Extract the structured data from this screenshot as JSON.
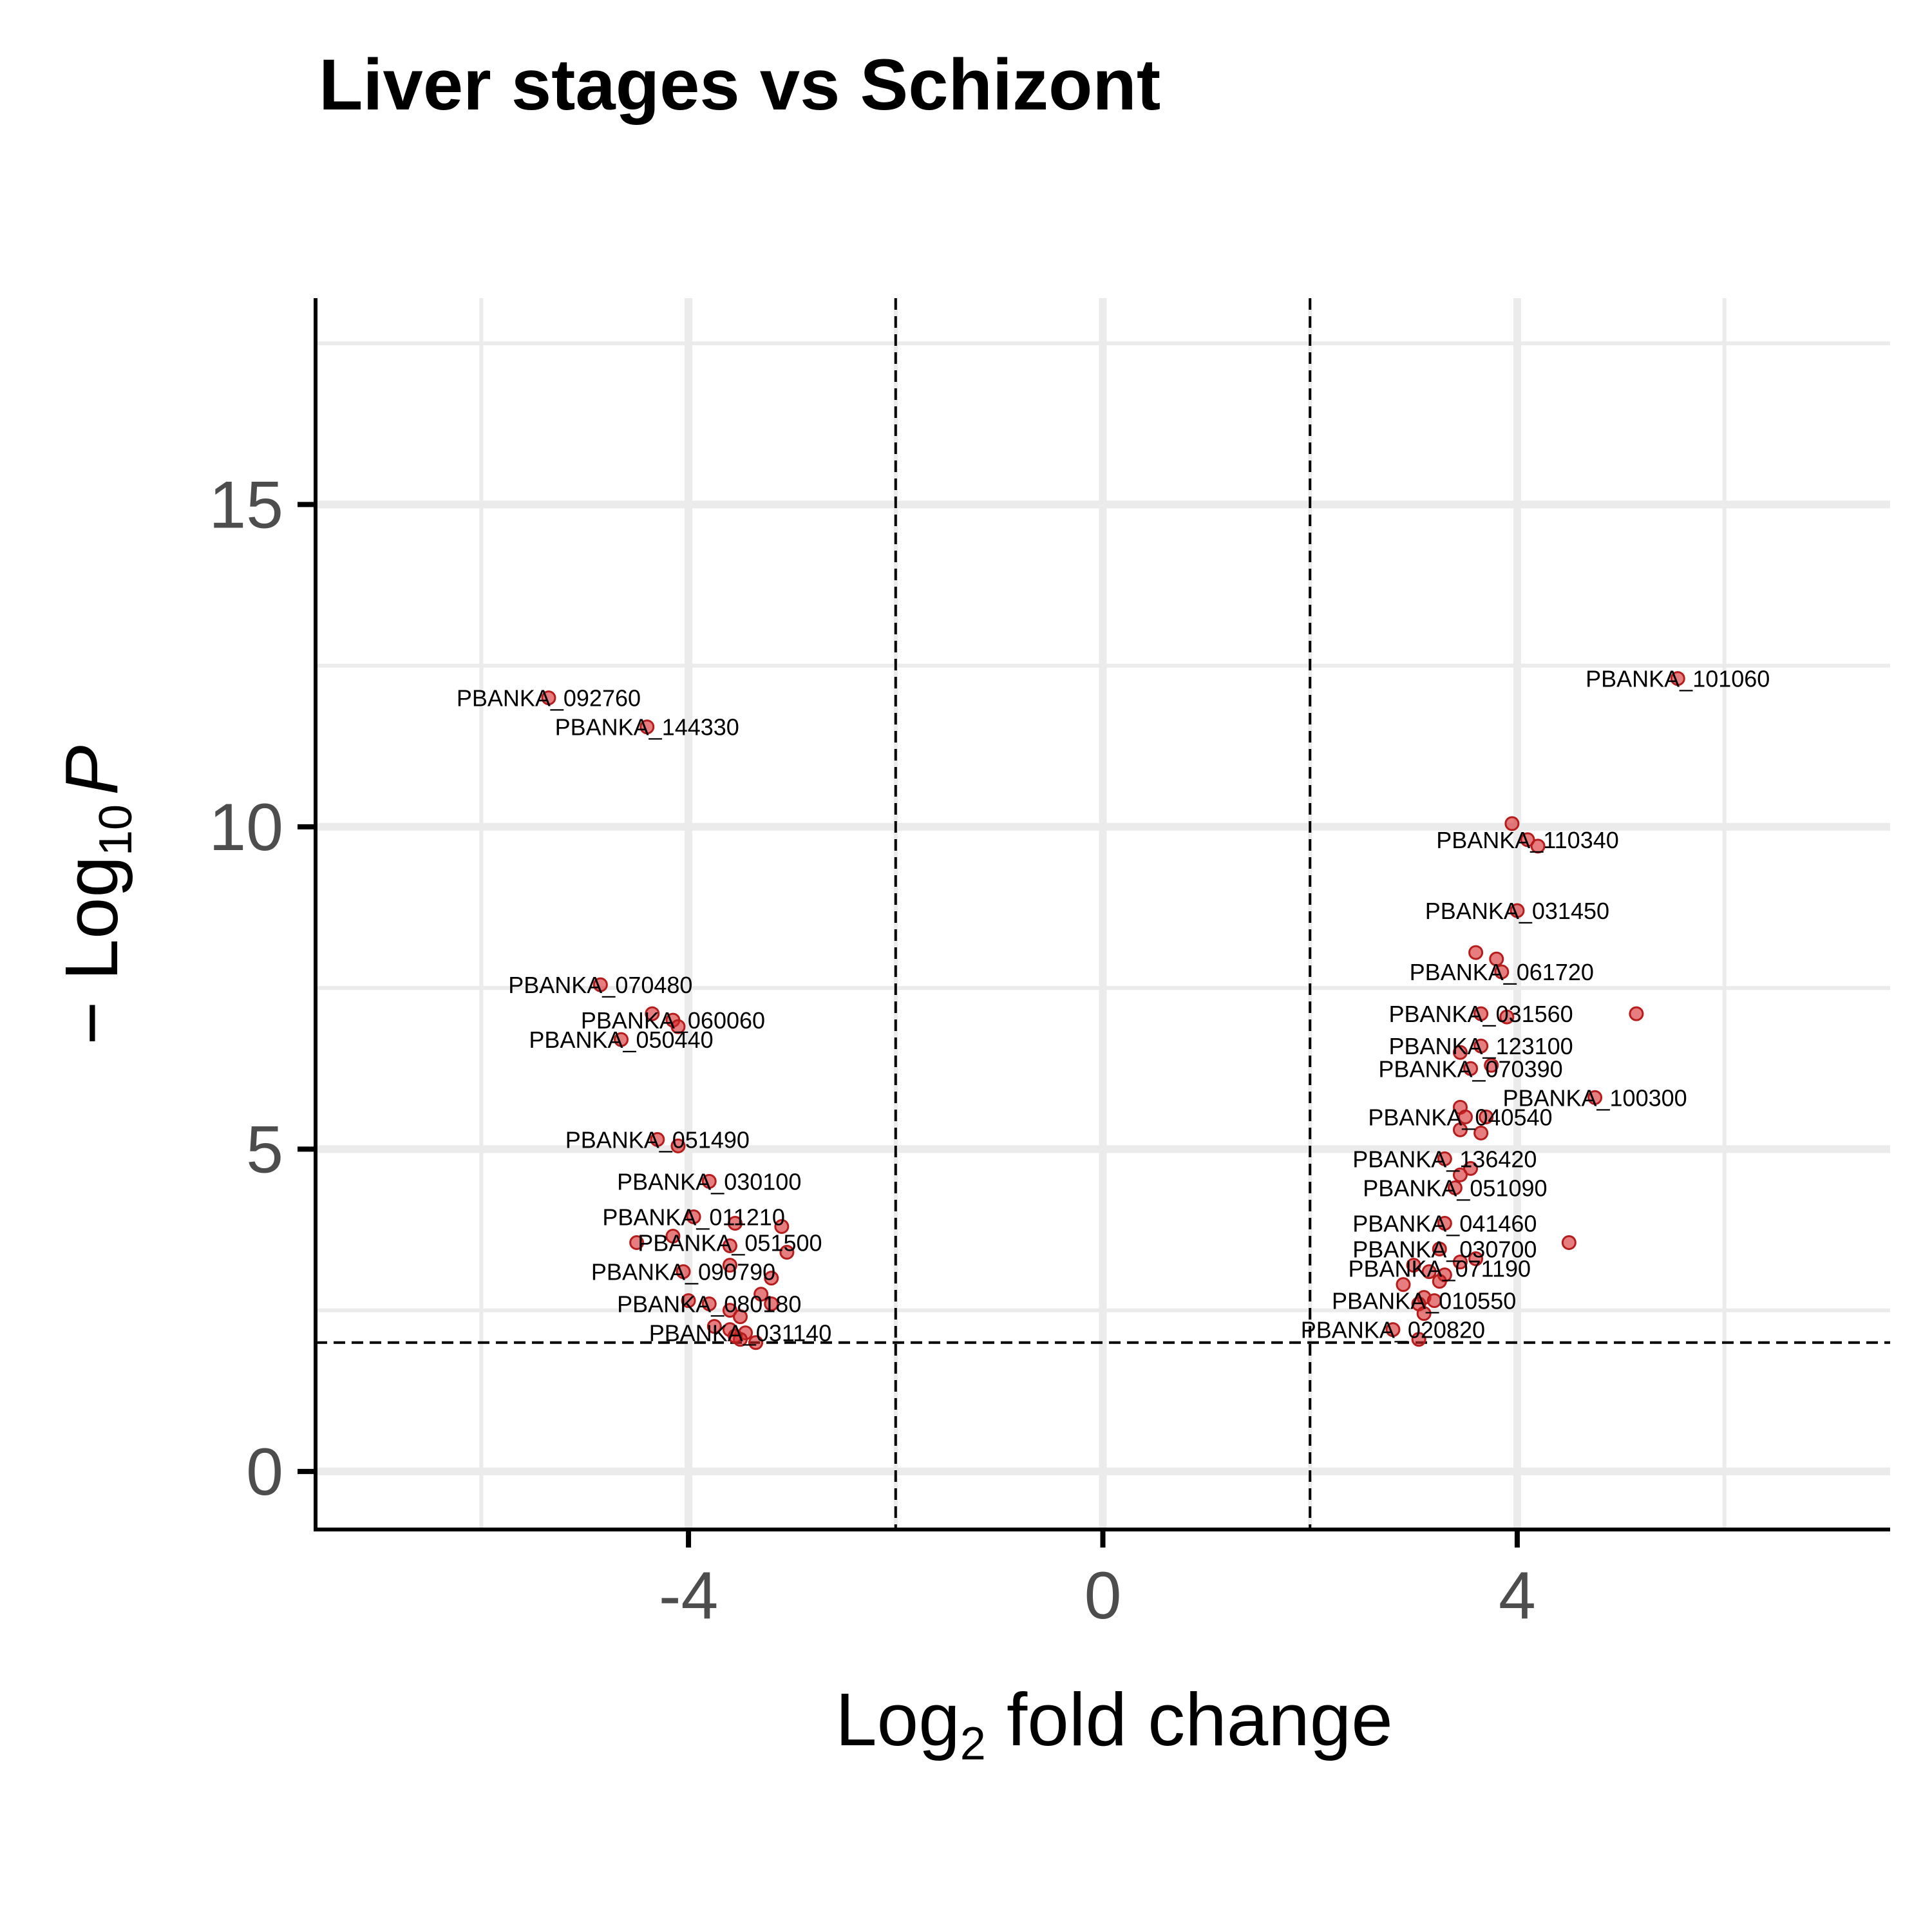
{
  "chart_data": {
    "type": "scatter",
    "title": "Liver stages vs Schizont",
    "xlabel": "Log2 fold change",
    "xlabel_parts": {
      "base": "Log",
      "sub": "2",
      "rest": " fold change"
    },
    "ylabel": "-Log10 P",
    "ylabel_parts": {
      "prefix": "− Log",
      "sub": "10",
      "italic": "P"
    },
    "xlim": [
      -7.6,
      7.6
    ],
    "ylim": [
      -0.9,
      18.2
    ],
    "xticks": [
      -4,
      0,
      4
    ],
    "xtick_labels": [
      "-4",
      "0",
      "4"
    ],
    "yticks": [
      0,
      5,
      10,
      15
    ],
    "ytick_labels": [
      "0",
      "5",
      "10",
      "15"
    ],
    "x_minor_gridlines": [
      -6,
      -2,
      2,
      6
    ],
    "y_minor_gridlines": [
      2.5,
      7.5,
      12.5,
      17.5
    ],
    "fc_cutoff": [
      -2,
      2
    ],
    "p_cutoff": 2,
    "grid": true,
    "legend": "none",
    "point_color": "#d62728",
    "points": [
      {
        "x": -5.35,
        "y": 12.0
      },
      {
        "x": -4.4,
        "y": 11.55
      },
      {
        "x": -4.85,
        "y": 7.55
      },
      {
        "x": -4.35,
        "y": 7.1
      },
      {
        "x": -4.15,
        "y": 7.0
      },
      {
        "x": -4.1,
        "y": 6.9
      },
      {
        "x": -4.65,
        "y": 6.7
      },
      {
        "x": -4.3,
        "y": 5.15
      },
      {
        "x": -4.1,
        "y": 5.05
      },
      {
        "x": -3.8,
        "y": 4.5
      },
      {
        "x": -3.95,
        "y": 3.95
      },
      {
        "x": -3.55,
        "y": 3.85
      },
      {
        "x": -3.1,
        "y": 3.8
      },
      {
        "x": -4.5,
        "y": 3.55
      },
      {
        "x": -4.15,
        "y": 3.65
      },
      {
        "x": -3.6,
        "y": 3.5
      },
      {
        "x": -3.05,
        "y": 3.4
      },
      {
        "x": -3.6,
        "y": 3.2
      },
      {
        "x": -4.05,
        "y": 3.1
      },
      {
        "x": -3.2,
        "y": 3.0
      },
      {
        "x": -3.3,
        "y": 2.75
      },
      {
        "x": -4.0,
        "y": 2.65
      },
      {
        "x": -3.8,
        "y": 2.6
      },
      {
        "x": -3.2,
        "y": 2.6
      },
      {
        "x": -3.6,
        "y": 2.5
      },
      {
        "x": -3.5,
        "y": 2.4
      },
      {
        "x": -3.75,
        "y": 2.25
      },
      {
        "x": -3.6,
        "y": 2.2
      },
      {
        "x": -3.45,
        "y": 2.15
      },
      {
        "x": -3.5,
        "y": 2.05
      },
      {
        "x": -3.35,
        "y": 2.0
      },
      {
        "x": -3.55,
        "y": 2.1
      },
      {
        "x": 5.55,
        "y": 12.3
      },
      {
        "x": 3.95,
        "y": 10.05
      },
      {
        "x": 4.1,
        "y": 9.8
      },
      {
        "x": 4.2,
        "y": 9.7
      },
      {
        "x": 4.0,
        "y": 8.7
      },
      {
        "x": 3.6,
        "y": 8.05
      },
      {
        "x": 3.8,
        "y": 7.95
      },
      {
        "x": 3.85,
        "y": 7.75
      },
      {
        "x": 5.15,
        "y": 7.1
      },
      {
        "x": 3.9,
        "y": 7.05
      },
      {
        "x": 3.65,
        "y": 7.1
      },
      {
        "x": 3.65,
        "y": 6.6
      },
      {
        "x": 3.45,
        "y": 6.5
      },
      {
        "x": 3.55,
        "y": 6.25
      },
      {
        "x": 3.75,
        "y": 6.3
      },
      {
        "x": 4.75,
        "y": 5.8
      },
      {
        "x": 3.45,
        "y": 5.65
      },
      {
        "x": 3.7,
        "y": 5.5
      },
      {
        "x": 3.5,
        "y": 5.5
      },
      {
        "x": 3.45,
        "y": 5.3
      },
      {
        "x": 3.65,
        "y": 5.25
      },
      {
        "x": 3.3,
        "y": 4.85
      },
      {
        "x": 3.55,
        "y": 4.7
      },
      {
        "x": 3.45,
        "y": 4.6
      },
      {
        "x": 3.4,
        "y": 4.4
      },
      {
        "x": 3.3,
        "y": 3.85
      },
      {
        "x": 4.5,
        "y": 3.55
      },
      {
        "x": 3.25,
        "y": 3.45
      },
      {
        "x": 3.6,
        "y": 3.3
      },
      {
        "x": 3.45,
        "y": 3.25
      },
      {
        "x": 3.0,
        "y": 3.2
      },
      {
        "x": 3.15,
        "y": 3.1
      },
      {
        "x": 3.3,
        "y": 3.05
      },
      {
        "x": 3.25,
        "y": 2.95
      },
      {
        "x": 2.9,
        "y": 2.9
      },
      {
        "x": 3.1,
        "y": 2.7
      },
      {
        "x": 3.2,
        "y": 2.65
      },
      {
        "x": 3.05,
        "y": 2.6
      },
      {
        "x": 3.1,
        "y": 2.45
      },
      {
        "x": 2.8,
        "y": 2.2
      },
      {
        "x": 3.05,
        "y": 2.05
      }
    ],
    "labels": [
      {
        "text": "PBANKA_092760",
        "x": -5.35,
        "y": 12.0
      },
      {
        "text": "PBANKA_144330",
        "x": -4.4,
        "y": 11.55
      },
      {
        "text": "PBANKA_070480",
        "x": -4.85,
        "y": 7.55
      },
      {
        "text": "PBANKA_060060",
        "x": -4.15,
        "y": 7.0
      },
      {
        "text": "PBANKA_050440",
        "x": -4.65,
        "y": 6.7
      },
      {
        "text": "PBANKA_051490",
        "x": -4.3,
        "y": 5.15
      },
      {
        "text": "PBANKA_030100",
        "x": -3.8,
        "y": 4.5
      },
      {
        "text": "PBANKA_011210",
        "x": -3.95,
        "y": 3.95
      },
      {
        "text": "PBANKA_051500",
        "x": -3.6,
        "y": 3.55
      },
      {
        "text": "PBANKA_090790",
        "x": -4.05,
        "y": 3.1
      },
      {
        "text": "PBANKA_080180",
        "x": -3.8,
        "y": 2.6
      },
      {
        "text": "PBANKA_031140",
        "x": -3.5,
        "y": 2.15
      },
      {
        "text": "PBANKA_101060",
        "x": 5.55,
        "y": 12.3
      },
      {
        "text": "PBANKA_110340",
        "x": 4.1,
        "y": 9.8
      },
      {
        "text": "PBANKA_031450",
        "x": 4.0,
        "y": 8.7
      },
      {
        "text": "PBANKA_061720",
        "x": 3.85,
        "y": 7.75
      },
      {
        "text": "PBANKA_031560",
        "x": 3.65,
        "y": 7.1
      },
      {
        "text": "PBANKA_123100",
        "x": 3.65,
        "y": 6.6
      },
      {
        "text": "PBANKA_070390",
        "x": 3.55,
        "y": 6.25
      },
      {
        "text": "PBANKA_100300",
        "x": 4.75,
        "y": 5.8
      },
      {
        "text": "PBANKA_040540",
        "x": 3.45,
        "y": 5.5
      },
      {
        "text": "PBANKA_136420",
        "x": 3.3,
        "y": 4.85
      },
      {
        "text": "PBANKA_051090",
        "x": 3.4,
        "y": 4.4
      },
      {
        "text": "PBANKA_041460",
        "x": 3.3,
        "y": 3.85
      },
      {
        "text": "PBANKA_030700",
        "x": 3.3,
        "y": 3.45
      },
      {
        "text": "PBANKA_071190",
        "x": 3.25,
        "y": 3.15
      },
      {
        "text": "PBANKA_010550",
        "x": 3.1,
        "y": 2.65
      },
      {
        "text": "PBANKA_020820",
        "x": 2.8,
        "y": 2.2
      }
    ]
  }
}
